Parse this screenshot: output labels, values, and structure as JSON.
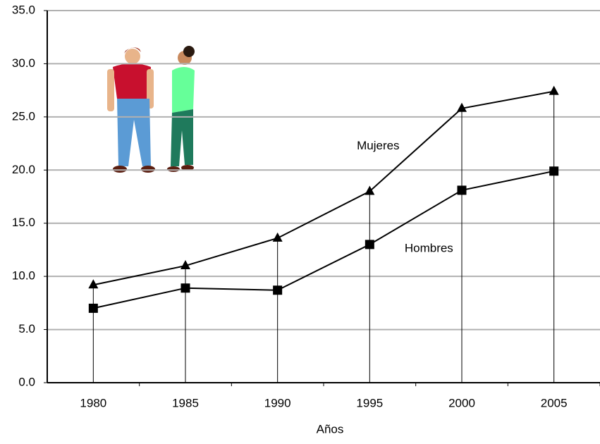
{
  "chart_data": {
    "type": "line",
    "x_label": "Años",
    "categories": [
      "1980",
      "1985",
      "1990",
      "1995",
      "2000",
      "2005"
    ],
    "series": [
      {
        "name": "Mujeres",
        "color": "#000000",
        "marker": "triangle",
        "values": [
          9.2,
          11.0,
          13.6,
          18.0,
          25.8,
          27.4
        ]
      },
      {
        "name": "Hombres",
        "color": "#000000",
        "marker": "square",
        "values": [
          7.0,
          8.9,
          8.7,
          13.0,
          18.1,
          19.9
        ]
      }
    ],
    "ylim": [
      0,
      35
    ],
    "yticks": [
      {
        "value": 0,
        "label": "0.0"
      },
      {
        "value": 5,
        "label": "5.0"
      },
      {
        "value": 10,
        "label": "10.0"
      },
      {
        "value": 15,
        "label": "15.0"
      },
      {
        "value": 20,
        "label": "20.0"
      },
      {
        "value": 25,
        "label": "25.0"
      },
      {
        "value": 30,
        "label": "30.0"
      },
      {
        "value": 35,
        "label": "35.0"
      }
    ],
    "grid": true,
    "drop_lines": true
  }
}
